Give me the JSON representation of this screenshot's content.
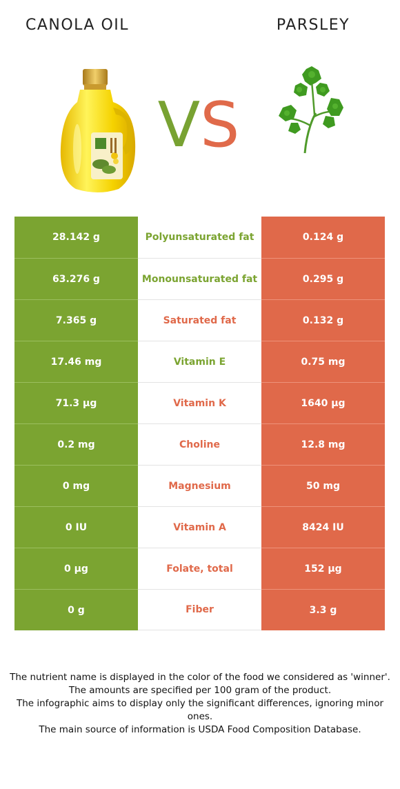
{
  "header": {
    "left_food": "CANOLA OIL",
    "right_food": "PARSLEY",
    "vs_v": "V",
    "vs_s": "S"
  },
  "colors": {
    "left_food": "#7ba431",
    "right_food": "#e0694a"
  },
  "images": {
    "left": "canola-oil-bottle-icon",
    "right": "parsley-sprig-icon"
  },
  "rows": [
    {
      "nutrient": "Polyunsaturated fat",
      "left": "28.142 g",
      "right": "0.124 g",
      "winner": "left"
    },
    {
      "nutrient": "Monounsaturated fat",
      "left": "63.276 g",
      "right": "0.295 g",
      "winner": "left"
    },
    {
      "nutrient": "Saturated fat",
      "left": "7.365 g",
      "right": "0.132 g",
      "winner": "right"
    },
    {
      "nutrient": "Vitamin E",
      "left": "17.46 mg",
      "right": "0.75 mg",
      "winner": "left"
    },
    {
      "nutrient": "Vitamin K",
      "left": "71.3 µg",
      "right": "1640 µg",
      "winner": "right"
    },
    {
      "nutrient": "Choline",
      "left": "0.2 mg",
      "right": "12.8 mg",
      "winner": "right"
    },
    {
      "nutrient": "Magnesium",
      "left": "0 mg",
      "right": "50 mg",
      "winner": "right"
    },
    {
      "nutrient": "Vitamin A",
      "left": "0 IU",
      "right": "8424 IU",
      "winner": "right"
    },
    {
      "nutrient": "Folate, total",
      "left": "0 µg",
      "right": "152 µg",
      "winner": "right"
    },
    {
      "nutrient": "Fiber",
      "left": "0 g",
      "right": "3.3 g",
      "winner": "right"
    }
  ],
  "notes": [
    "The nutrient name is displayed in the color of the food we considered as 'winner'.",
    "The amounts are specified per 100 gram of the product.",
    "The infographic aims to display only the significant differences, ignoring minor ones.",
    "The main source of information is USDA Food Composition Database."
  ]
}
